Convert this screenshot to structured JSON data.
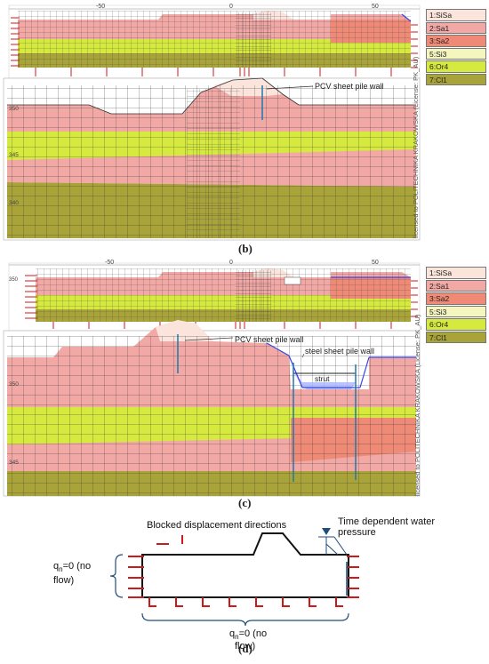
{
  "captions": {
    "b": "(b)",
    "c": "(c)",
    "d": "(d)"
  },
  "legend_items": [
    {
      "label": "1:SiSa",
      "color": "#fbe4dc"
    },
    {
      "label": "2:Sa1",
      "color": "#f2a9a6"
    },
    {
      "label": "3:Sa2",
      "color": "#ee8a76"
    },
    {
      "label": "5:Si3",
      "color": "#f5f5c0"
    },
    {
      "label": "6:Or4",
      "color": "#d6e93e"
    },
    {
      "label": "7:Cl1",
      "color": "#a9a43a"
    }
  ],
  "ticks": {
    "t1": "-50",
    "t2": "0",
    "t3": "50",
    "t4": "350",
    "t5": "345",
    "t6": "340",
    "t7": "350",
    "t8": "350",
    "t9": "345"
  },
  "annotations": {
    "pcv_b": "PCV sheet pile wall",
    "pcv_c": "PCV sheet pile wall",
    "steel_c": "steel sheet pile wall",
    "strut_c": "strut"
  },
  "watermark": "licensed to POLITECHNIKA KRAKOWSKA (License: PK_AU)",
  "diagram_d": {
    "blocked": "Blocked displacement directions",
    "water_line1": "Time dependent water",
    "water_line2": "pressure",
    "qn_left_1": "q",
    "qn_left_sub": "n",
    "qn_left_2": "=0 (no",
    "qn_left_3": "flow)",
    "qn_bottom_1": "q",
    "qn_bottom_sub": "n",
    "qn_bottom_2": "=0 (no",
    "qn_bottom_3": "flow)"
  }
}
